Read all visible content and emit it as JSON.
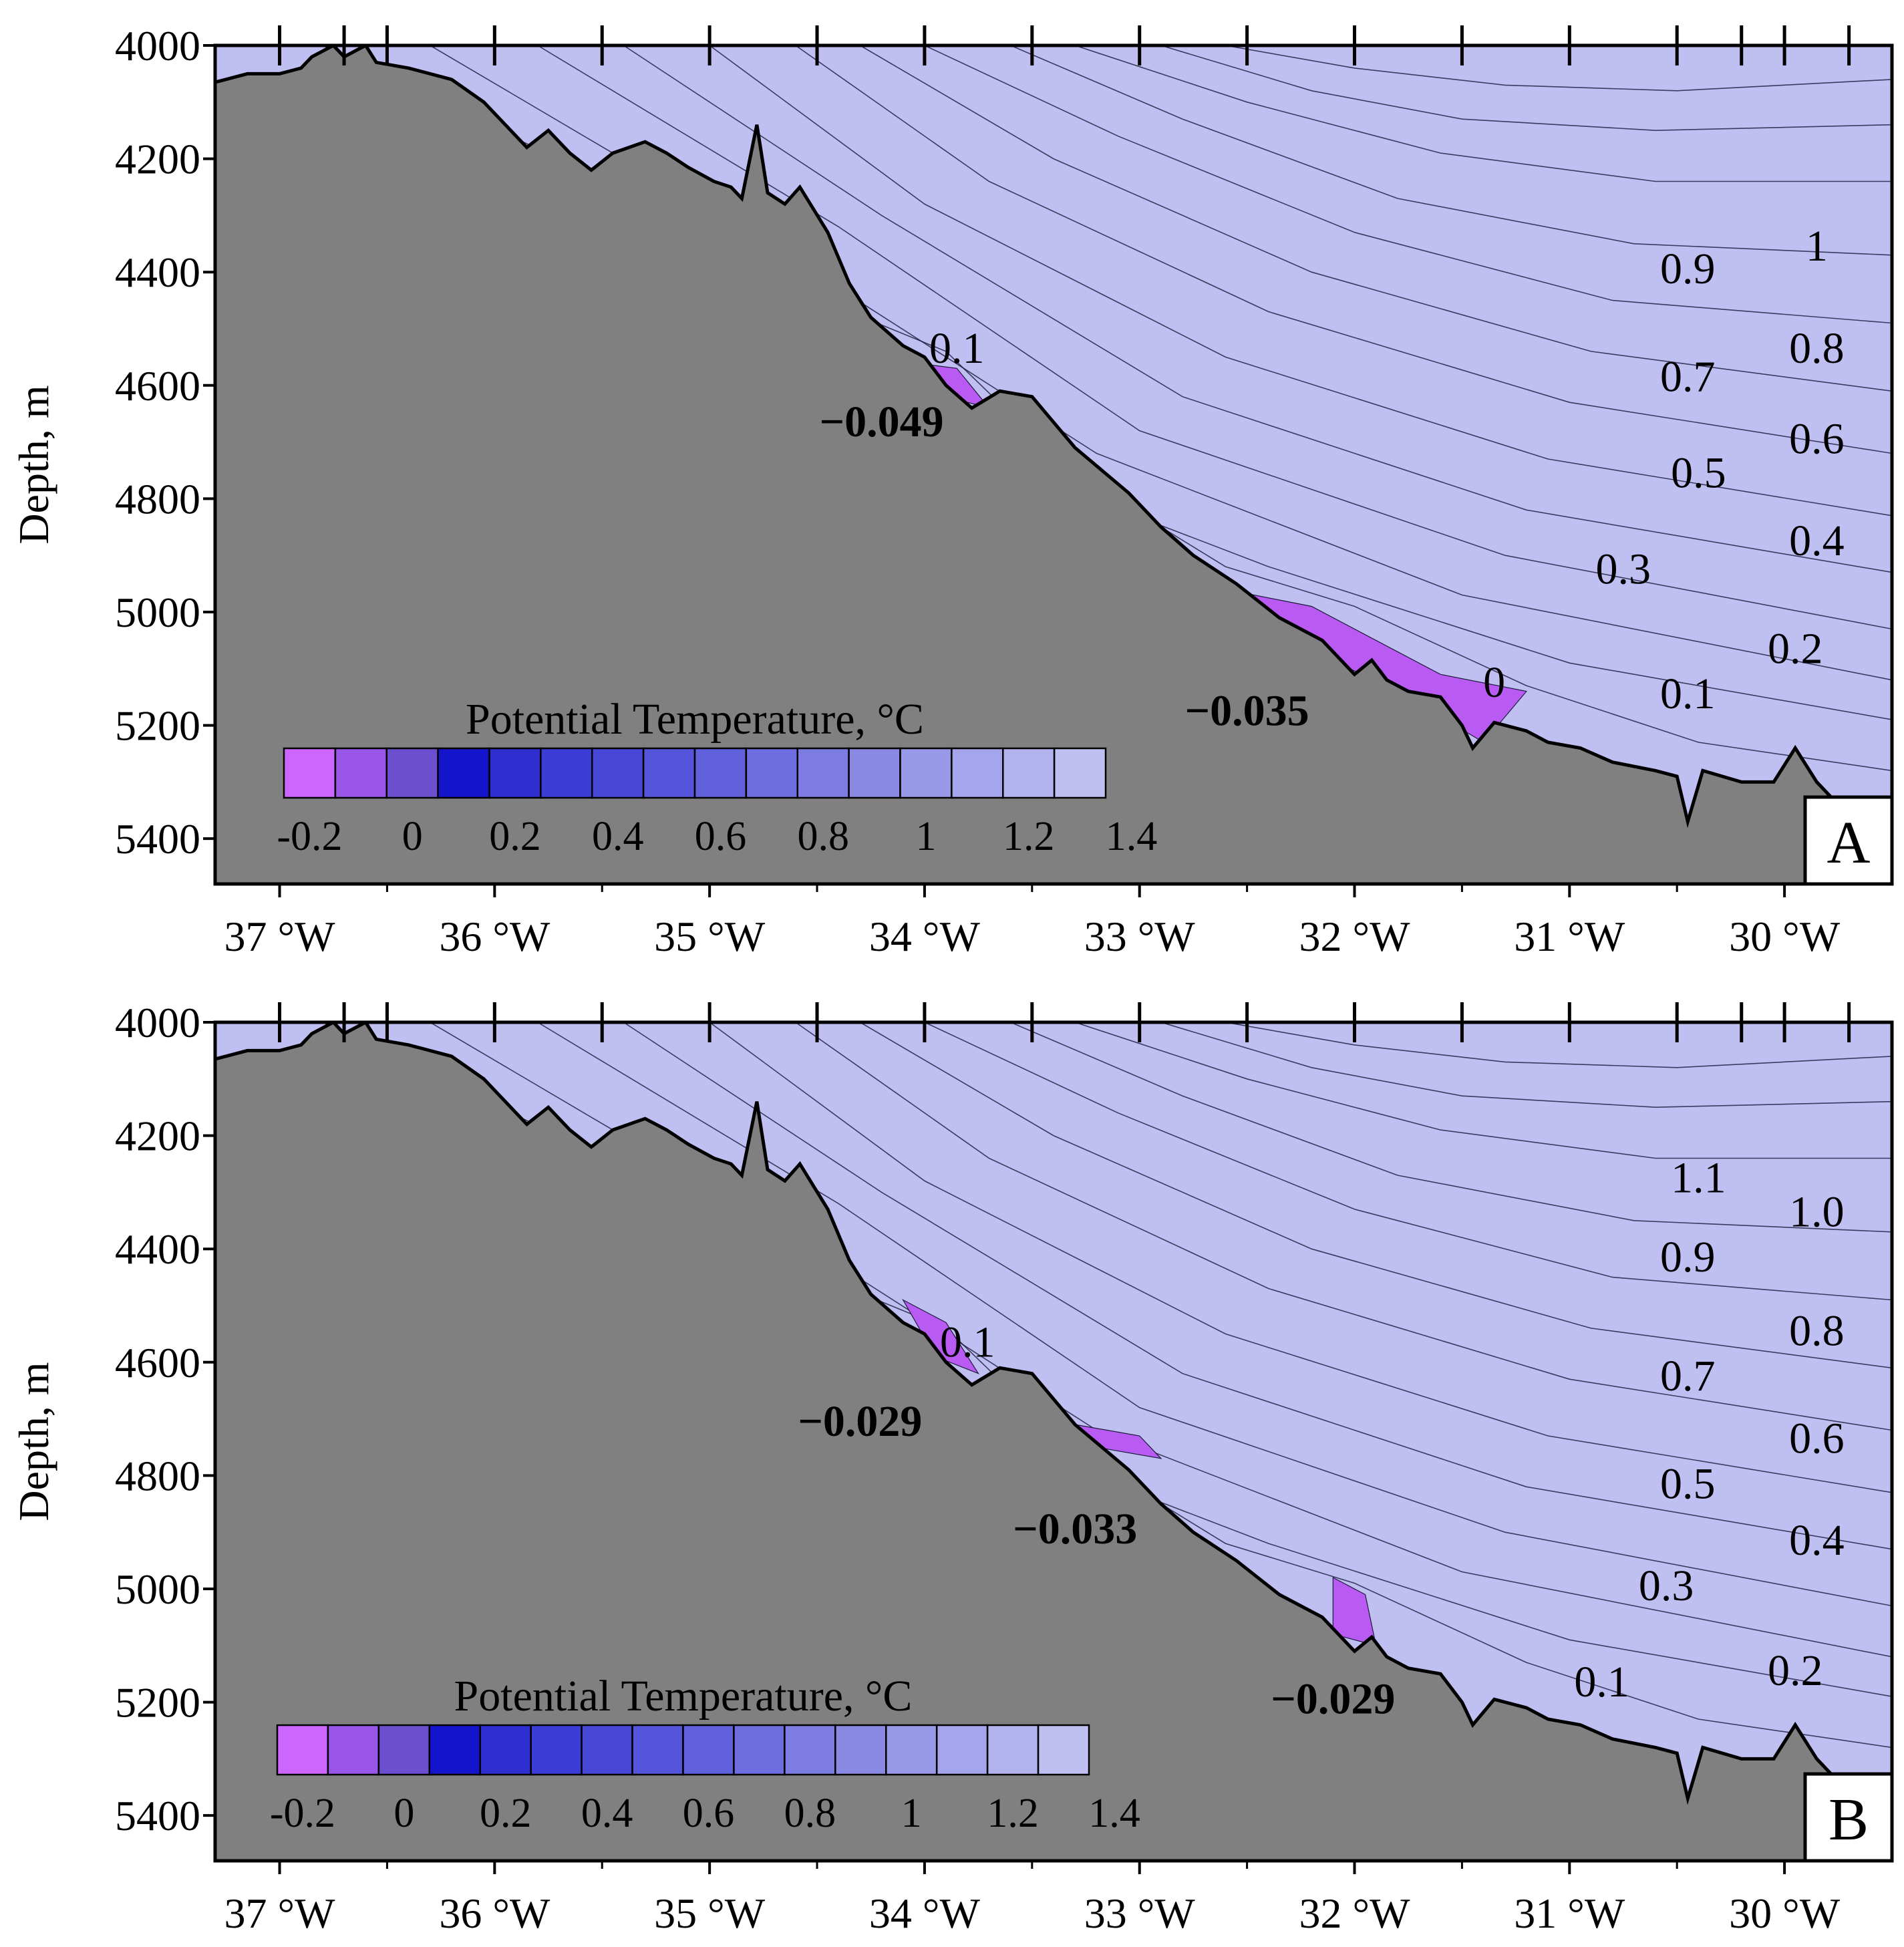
{
  "chart_data": [
    {
      "type": "contour-section",
      "panel_label": "A",
      "title": "",
      "xlabel": "",
      "ylabel": "Depth, m",
      "xlim_lon": [
        -37.3,
        -29.5
      ],
      "ylim": [
        4000,
        5480
      ],
      "x_ticks": [
        {
          "lon": -37,
          "label": "37 °W"
        },
        {
          "lon": -36,
          "label": "36 °W"
        },
        {
          "lon": -35,
          "label": "35 °W"
        },
        {
          "lon": -34,
          "label": "34 °W"
        },
        {
          "lon": -33,
          "label": "33 °W"
        },
        {
          "lon": -32,
          "label": "32 °W"
        },
        {
          "lon": -31,
          "label": "31 °W"
        },
        {
          "lon": -30,
          "label": "30 °W"
        }
      ],
      "y_ticks": [
        {
          "value": 4000,
          "label": "4000"
        },
        {
          "value": 4200,
          "label": "4200"
        },
        {
          "value": 4400,
          "label": "4400"
        },
        {
          "value": 4600,
          "label": "4600"
        },
        {
          "value": 4800,
          "label": "4800"
        },
        {
          "value": 5000,
          "label": "5000"
        },
        {
          "value": 5200,
          "label": "5200"
        },
        {
          "value": 5400,
          "label": "5400"
        }
      ],
      "station_lons": [
        -37,
        -36.7,
        -36.5,
        -36,
        -35.5,
        -35,
        -34.5,
        -34,
        -33.5,
        -33,
        -32.5,
        -32,
        -31.5,
        -31,
        -30.5,
        -30.2,
        -30,
        -29.7
      ],
      "isotherm_labels": [
        {
          "text": "1",
          "lon": -29.85,
          "depth": 4380
        },
        {
          "text": "0.9",
          "lon": -30.45,
          "depth": 4420
        },
        {
          "text": "0.8",
          "lon": -29.85,
          "depth": 4560
        },
        {
          "text": "0.7",
          "lon": -30.45,
          "depth": 4610
        },
        {
          "text": "0.6",
          "lon": -29.85,
          "depth": 4720
        },
        {
          "text": "0.5",
          "lon": -30.4,
          "depth": 4780
        },
        {
          "text": "0.4",
          "lon": -29.85,
          "depth": 4900
        },
        {
          "text": "0.3",
          "lon": -30.75,
          "depth": 4950
        },
        {
          "text": "0.2",
          "lon": -29.95,
          "depth": 5090
        },
        {
          "text": "0.1",
          "lon": -30.45,
          "depth": 5170
        },
        {
          "text": "0.1",
          "lon": -33.85,
          "depth": 4560
        },
        {
          "text": "0",
          "lon": -31.35,
          "depth": 5150
        }
      ],
      "minimum_labels": [
        {
          "text": "−0.049",
          "lon": -34.2,
          "depth": 4690
        },
        {
          "text": "−0.035",
          "lon": -32.5,
          "depth": 5200
        }
      ],
      "bands": [
        {
          "value": -0.2,
          "color": "#CC66FF"
        },
        {
          "value": -0.1,
          "color": "#9955E8"
        },
        {
          "value": 0,
          "color": "#6B4FCF"
        },
        {
          "value": 0.1,
          "color": "#1414CC"
        },
        {
          "value": 0.2,
          "color": "#2E2ED1"
        },
        {
          "value": 0.3,
          "color": "#3C3CD6"
        },
        {
          "value": 0.4,
          "color": "#4848D8"
        },
        {
          "value": 0.5,
          "color": "#5555DB"
        },
        {
          "value": 0.6,
          "color": "#6161DE"
        },
        {
          "value": 0.7,
          "color": "#6D6DE0"
        },
        {
          "value": 0.8,
          "color": "#7C7CE2"
        },
        {
          "value": 0.9,
          "color": "#8A8AE5"
        },
        {
          "value": 1.0,
          "color": "#9898E8"
        },
        {
          "value": 1.1,
          "color": "#A5A5EB"
        },
        {
          "value": 1.2,
          "color": "#B2B2EE"
        },
        {
          "value": 1.3,
          "color": "#BFBFF2"
        }
      ],
      "colorbar": {
        "title": "Potential Temperature, °C",
        "labels": [
          "-0.2",
          "0",
          "0.2",
          "0.4",
          "0.6",
          "0.8",
          "1",
          "1.2",
          "1.4"
        ]
      }
    },
    {
      "type": "contour-section",
      "panel_label": "B",
      "title": "",
      "xlabel": "",
      "ylabel": "Depth, m",
      "xlim_lon": [
        -37.3,
        -29.5
      ],
      "ylim": [
        4000,
        5480
      ],
      "x_ticks": [
        {
          "lon": -37,
          "label": "37 °W"
        },
        {
          "lon": -36,
          "label": "36 °W"
        },
        {
          "lon": -35,
          "label": "35 °W"
        },
        {
          "lon": -34,
          "label": "34 °W"
        },
        {
          "lon": -33,
          "label": "33 °W"
        },
        {
          "lon": -32,
          "label": "32 °W"
        },
        {
          "lon": -31,
          "label": "31 °W"
        },
        {
          "lon": -30,
          "label": "30 °W"
        }
      ],
      "y_ticks": [
        {
          "value": 4000,
          "label": "4000"
        },
        {
          "value": 4200,
          "label": "4200"
        },
        {
          "value": 4400,
          "label": "4400"
        },
        {
          "value": 4600,
          "label": "4600"
        },
        {
          "value": 4800,
          "label": "4800"
        },
        {
          "value": 5000,
          "label": "5000"
        },
        {
          "value": 5200,
          "label": "5200"
        },
        {
          "value": 5400,
          "label": "5400"
        }
      ],
      "station_lons": [
        -37,
        -36.7,
        -36.5,
        -36,
        -35.5,
        -35,
        -34.5,
        -34,
        -33.5,
        -33,
        -32.5,
        -32,
        -31.5,
        -31,
        -30.5,
        -30.2,
        -30,
        -29.7
      ],
      "isotherm_labels": [
        {
          "text": "1.1",
          "lon": -30.4,
          "depth": 4300
        },
        {
          "text": "1.0",
          "lon": -29.85,
          "depth": 4360
        },
        {
          "text": "0.9",
          "lon": -30.45,
          "depth": 4440
        },
        {
          "text": "0.8",
          "lon": -29.85,
          "depth": 4570
        },
        {
          "text": "0.7",
          "lon": -30.45,
          "depth": 4650
        },
        {
          "text": "0.6",
          "lon": -29.85,
          "depth": 4760
        },
        {
          "text": "0.5",
          "lon": -30.45,
          "depth": 4840
        },
        {
          "text": "0.4",
          "lon": -29.85,
          "depth": 4940
        },
        {
          "text": "0.3",
          "lon": -30.55,
          "depth": 5020
        },
        {
          "text": "0.2",
          "lon": -29.95,
          "depth": 5170
        },
        {
          "text": "0.1",
          "lon": -30.85,
          "depth": 5190
        },
        {
          "text": "0.1",
          "lon": -33.8,
          "depth": 4590
        }
      ],
      "minimum_labels": [
        {
          "text": "−0.029",
          "lon": -34.3,
          "depth": 4730
        },
        {
          "text": "−0.033",
          "lon": -33.3,
          "depth": 4920
        },
        {
          "text": "−0.029",
          "lon": -32.1,
          "depth": 5220
        }
      ],
      "bands": [
        {
          "value": -0.2,
          "color": "#CC66FF"
        },
        {
          "value": -0.1,
          "color": "#9955E8"
        },
        {
          "value": 0,
          "color": "#6B4FCF"
        },
        {
          "value": 0.1,
          "color": "#1414CC"
        },
        {
          "value": 0.2,
          "color": "#2E2ED1"
        },
        {
          "value": 0.3,
          "color": "#3C3CD6"
        },
        {
          "value": 0.4,
          "color": "#4848D8"
        },
        {
          "value": 0.5,
          "color": "#5555DB"
        },
        {
          "value": 0.6,
          "color": "#6161DE"
        },
        {
          "value": 0.7,
          "color": "#6D6DE0"
        },
        {
          "value": 0.8,
          "color": "#7C7CE2"
        },
        {
          "value": 0.9,
          "color": "#8A8AE5"
        },
        {
          "value": 1.0,
          "color": "#9898E8"
        },
        {
          "value": 1.1,
          "color": "#A5A5EB"
        },
        {
          "value": 1.2,
          "color": "#B2B2EE"
        },
        {
          "value": 1.3,
          "color": "#BFBFF2"
        }
      ],
      "colorbar": {
        "title": "Potential Temperature, °C",
        "labels": [
          "-0.2",
          "0",
          "0.2",
          "0.4",
          "0.6",
          "0.8",
          "1",
          "1.2",
          "1.4"
        ]
      }
    }
  ],
  "colors": {
    "seabed": "#808080",
    "frame": "#000000",
    "isoline": "#1a1a3a"
  }
}
